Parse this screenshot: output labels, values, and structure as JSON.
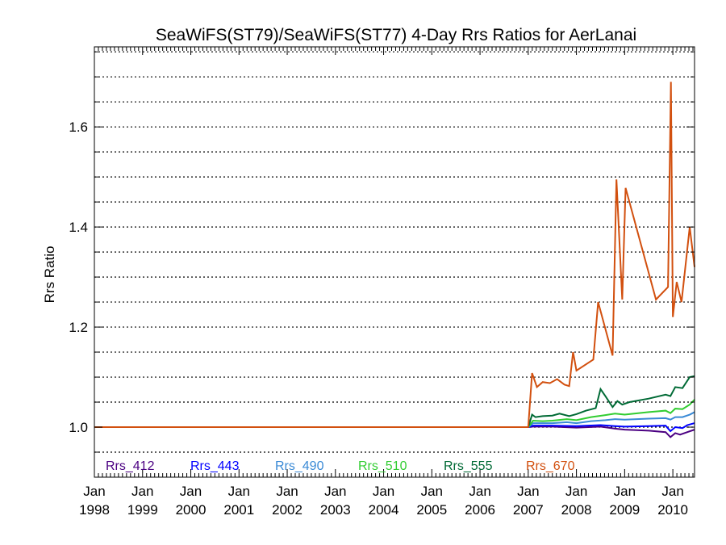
{
  "chart_data": {
    "type": "line",
    "title": "SeaWiFS(ST79)/SeaWiFS(ST77) 4-Day Rrs Ratios for AerLanai",
    "xlabel": "",
    "ylabel": "Rrs Ratio",
    "xlim": [
      1998.0,
      2010.45
    ],
    "ylim": [
      0.9,
      1.76
    ],
    "y_ticks": [
      1.0,
      1.2,
      1.4,
      1.6
    ],
    "y_tick_labels": [
      "1.0",
      "1.2",
      "1.4",
      "1.6"
    ],
    "y_grid": [
      0.95,
      1.0,
      1.05,
      1.1,
      1.15,
      1.2,
      1.25,
      1.3,
      1.35,
      1.4,
      1.45,
      1.5,
      1.55,
      1.6,
      1.65,
      1.7,
      1.75
    ],
    "x_ticks": [
      {
        "value": 1998,
        "month": "Jan",
        "year": "1998"
      },
      {
        "value": 1999,
        "month": "Jan",
        "year": "1999"
      },
      {
        "value": 2000,
        "month": "Jan",
        "year": "2000"
      },
      {
        "value": 2001,
        "month": "Jan",
        "year": "2001"
      },
      {
        "value": 2002,
        "month": "Jan",
        "year": "2002"
      },
      {
        "value": 2003,
        "month": "Jan",
        "year": "2003"
      },
      {
        "value": 2004,
        "month": "Jan",
        "year": "2004"
      },
      {
        "value": 2005,
        "month": "Jan",
        "year": "2005"
      },
      {
        "value": 2006,
        "month": "Jan",
        "year": "2006"
      },
      {
        "value": 2007,
        "month": "Jan",
        "year": "2007"
      },
      {
        "value": 2008,
        "month": "Jan",
        "year": "2008"
      },
      {
        "value": 2009,
        "month": "Jan",
        "year": "2009"
      },
      {
        "value": 2010,
        "month": "Jan",
        "year": "2010"
      }
    ],
    "grid": "horizontal dotted",
    "legend_placement": "bottom, inside plot",
    "series": [
      {
        "name": "Rrs_412",
        "color": "#4b0082",
        "points": [
          [
            1998.0,
            1.0
          ],
          [
            2007.0,
            1.0
          ],
          [
            2007.1,
            1.001
          ],
          [
            2007.5,
            1.001
          ],
          [
            2008.0,
            0.999
          ],
          [
            2008.5,
            1.001
          ],
          [
            2008.8,
            0.997
          ],
          [
            2009.0,
            0.995
          ],
          [
            2009.5,
            0.993
          ],
          [
            2009.85,
            0.99
          ],
          [
            2009.95,
            0.98
          ],
          [
            2010.05,
            0.988
          ],
          [
            2010.15,
            0.985
          ],
          [
            2010.3,
            0.99
          ],
          [
            2010.45,
            0.995
          ]
        ]
      },
      {
        "name": "Rrs_443",
        "color": "#0000ff",
        "points": [
          [
            1998.0,
            1.0
          ],
          [
            2007.0,
            1.0
          ],
          [
            2007.1,
            1.003
          ],
          [
            2007.5,
            1.003
          ],
          [
            2008.0,
            1.002
          ],
          [
            2008.5,
            1.004
          ],
          [
            2008.8,
            1.002
          ],
          [
            2009.0,
            1.001
          ],
          [
            2009.5,
            1.002
          ],
          [
            2009.85,
            1.003
          ],
          [
            2009.95,
            0.992
          ],
          [
            2010.05,
            1.0
          ],
          [
            2010.2,
            0.998
          ],
          [
            2010.3,
            1.004
          ],
          [
            2010.45,
            1.008
          ]
        ]
      },
      {
        "name": "Rrs_490",
        "color": "#3a8ad6",
        "points": [
          [
            1998.0,
            1.0
          ],
          [
            2007.0,
            1.0
          ],
          [
            2007.1,
            1.008
          ],
          [
            2007.5,
            1.008
          ],
          [
            2007.8,
            1.01
          ],
          [
            2008.0,
            1.008
          ],
          [
            2008.3,
            1.012
          ],
          [
            2008.6,
            1.014
          ],
          [
            2008.8,
            1.016
          ],
          [
            2009.0,
            1.015
          ],
          [
            2009.5,
            1.017
          ],
          [
            2009.85,
            1.018
          ],
          [
            2009.95,
            1.015
          ],
          [
            2010.05,
            1.02
          ],
          [
            2010.2,
            1.02
          ],
          [
            2010.35,
            1.025
          ],
          [
            2010.45,
            1.03
          ]
        ]
      },
      {
        "name": "Rrs_510",
        "color": "#32cd32",
        "points": [
          [
            1998.0,
            1.0
          ],
          [
            2007.0,
            1.0
          ],
          [
            2007.1,
            1.013
          ],
          [
            2007.3,
            1.012
          ],
          [
            2007.5,
            1.013
          ],
          [
            2007.8,
            1.016
          ],
          [
            2008.0,
            1.014
          ],
          [
            2008.3,
            1.02
          ],
          [
            2008.6,
            1.024
          ],
          [
            2008.8,
            1.027
          ],
          [
            2009.0,
            1.025
          ],
          [
            2009.5,
            1.03
          ],
          [
            2009.85,
            1.033
          ],
          [
            2009.95,
            1.028
          ],
          [
            2010.05,
            1.037
          ],
          [
            2010.2,
            1.036
          ],
          [
            2010.35,
            1.045
          ],
          [
            2010.45,
            1.055
          ]
        ]
      },
      {
        "name": "Rrs_555",
        "color": "#006a35",
        "points": [
          [
            1998.0,
            1.0
          ],
          [
            2007.0,
            1.0
          ],
          [
            2007.08,
            1.025
          ],
          [
            2007.15,
            1.02
          ],
          [
            2007.3,
            1.022
          ],
          [
            2007.5,
            1.023
          ],
          [
            2007.65,
            1.027
          ],
          [
            2007.85,
            1.022
          ],
          [
            2008.0,
            1.026
          ],
          [
            2008.2,
            1.033
          ],
          [
            2008.4,
            1.038
          ],
          [
            2008.5,
            1.076
          ],
          [
            2008.6,
            1.062
          ],
          [
            2008.75,
            1.04
          ],
          [
            2008.85,
            1.052
          ],
          [
            2008.95,
            1.045
          ],
          [
            2009.1,
            1.05
          ],
          [
            2009.5,
            1.057
          ],
          [
            2009.85,
            1.065
          ],
          [
            2009.95,
            1.062
          ],
          [
            2010.05,
            1.08
          ],
          [
            2010.2,
            1.078
          ],
          [
            2010.35,
            1.1
          ],
          [
            2010.45,
            1.102
          ]
        ]
      },
      {
        "name": "Rrs_670",
        "color": "#d2500f",
        "points": [
          [
            1998.0,
            1.0
          ],
          [
            2007.0,
            1.0
          ],
          [
            2007.08,
            1.108
          ],
          [
            2007.18,
            1.08
          ],
          [
            2007.3,
            1.09
          ],
          [
            2007.45,
            1.088
          ],
          [
            2007.6,
            1.096
          ],
          [
            2007.75,
            1.085
          ],
          [
            2007.85,
            1.082
          ],
          [
            2007.93,
            1.15
          ],
          [
            2008.0,
            1.113
          ],
          [
            2008.35,
            1.135
          ],
          [
            2008.45,
            1.25
          ],
          [
            2008.75,
            1.143
          ],
          [
            2008.83,
            1.495
          ],
          [
            2008.95,
            1.255
          ],
          [
            2009.02,
            1.478
          ],
          [
            2009.65,
            1.255
          ],
          [
            2009.9,
            1.28
          ],
          [
            2009.96,
            1.69
          ],
          [
            2010.0,
            1.22
          ],
          [
            2010.08,
            1.29
          ],
          [
            2010.18,
            1.25
          ],
          [
            2010.35,
            1.4
          ],
          [
            2010.45,
            1.32
          ]
        ]
      }
    ]
  }
}
